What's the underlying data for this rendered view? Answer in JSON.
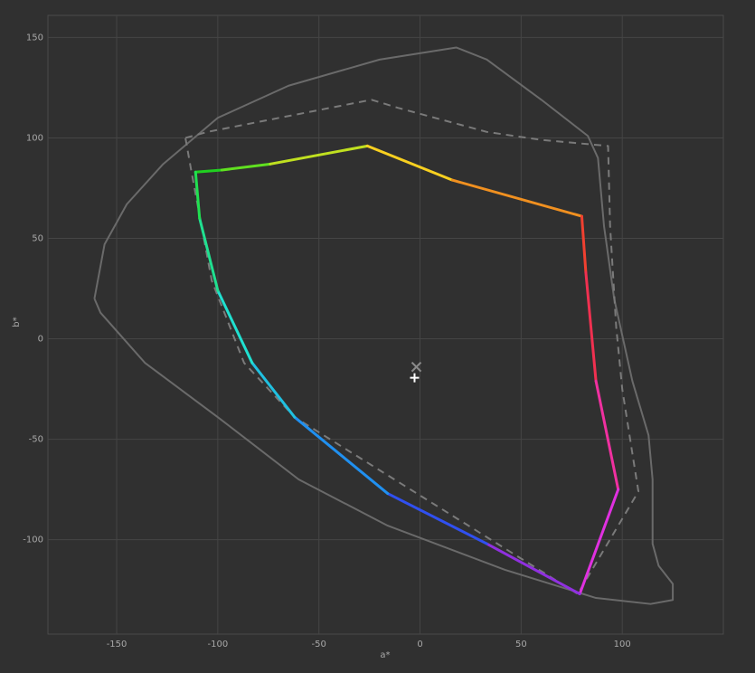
{
  "chart_data": {
    "type": "gamut",
    "x_label": "a*",
    "y_label": "b*",
    "xlim": [
      -184,
      150
    ],
    "ylim": [
      -147,
      161
    ],
    "xticks": [
      -150,
      -100,
      -50,
      0,
      50,
      100
    ],
    "yticks": [
      -100,
      -50,
      0,
      50,
      100,
      150
    ],
    "grid": true,
    "series": [
      {
        "color": "#6a6a6a",
        "dash": false,
        "x": [
          -161,
          -156,
          -145,
          -127,
          -100,
          -65,
          -20,
          18,
          33,
          60,
          83,
          88,
          91,
          96,
          105,
          113,
          115,
          115,
          118,
          125,
          125,
          114,
          87,
          42,
          -16,
          -60,
          -100,
          -136,
          -158,
          -161
        ],
        "values": [
          20,
          47,
          67,
          87,
          110,
          126,
          139,
          145,
          139,
          119,
          101,
          90,
          56,
          20,
          -21,
          -48,
          -70,
          -102,
          -113,
          -122,
          -130,
          -132,
          -129,
          -115,
          -93,
          -70,
          -39,
          -12,
          13,
          20
        ]
      },
      {
        "color": "#7a7a7a",
        "dash": true,
        "x": [
          -116,
          -105,
          -24,
          -11,
          33,
          60,
          93,
          94,
          97,
          100,
          105,
          108,
          78,
          -62,
          -87,
          -103,
          -113,
          -116
        ],
        "values": [
          100,
          103,
          119,
          115,
          103,
          99,
          96,
          56,
          6,
          -25,
          -57,
          -76,
          -127,
          -39,
          -12,
          29,
          83,
          100
        ]
      },
      {
        "colors": [
          "#20d020",
          "#60e020",
          "#c0e020",
          "#f8d020",
          "#f09020",
          "#f04030",
          "#f03050",
          "#f030a0",
          "#e030e0",
          "#9030e0",
          "#3050f0",
          "#2090f0",
          "#20c0e0",
          "#20e0d0",
          "#20e090",
          "#20e050"
        ],
        "x": [
          -111,
          -98,
          -74,
          -26,
          16,
          80,
          82,
          87,
          98,
          79,
          33,
          -16,
          -62,
          -83,
          -100,
          -109,
          -111
        ],
        "values": [
          83,
          84,
          87,
          96,
          79,
          61,
          33,
          -21,
          -75,
          -127,
          -102,
          -77,
          -39,
          -12,
          24,
          60,
          83
        ]
      }
    ],
    "points": [
      {
        "x": -1.8,
        "y": -14,
        "marker": "cross",
        "color": "#8a8a8a"
      },
      {
        "x": -2.7,
        "y": -19.4,
        "marker": "plus",
        "color": "#ffffff"
      }
    ]
  }
}
